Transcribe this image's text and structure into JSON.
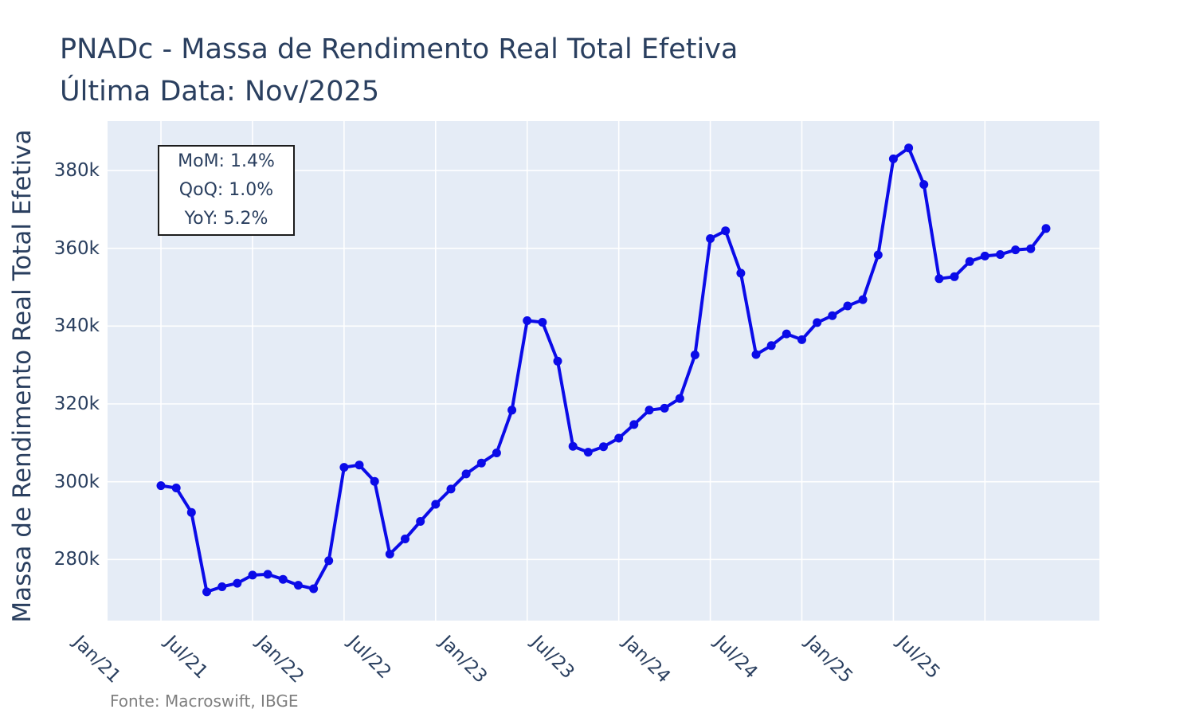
{
  "title": {
    "line1": "PNADc - Massa de Rendimento Real Total Efetiva",
    "line2": "Última Data: Nov/2025"
  },
  "annotation": {
    "lines": [
      "MoM: 1.4%",
      "QoQ: 1.0%",
      "YoY: 5.2%"
    ]
  },
  "footer": "Fonte: Macroswift, IBGE",
  "chart_data": {
    "type": "line",
    "title": "PNADc - Massa de Rendimento Real Total Efetiva",
    "subtitle": "Última Data: Nov/2025",
    "ylabel": "Massa de Rendimento Real Total Efetiva",
    "xlabel": "",
    "unit": "thousands (k)",
    "grid": true,
    "legend": "none",
    "x": [
      "Jan/21",
      "Fev/21",
      "Mar/21",
      "Abr/21",
      "Mai/21",
      "Jun/21",
      "Jul/21",
      "Ago/21",
      "Set/21",
      "Out/21",
      "Nov/21",
      "Dez/21",
      "Jan/22",
      "Fev/22",
      "Mar/22",
      "Abr/22",
      "Mai/22",
      "Jun/22",
      "Jul/22",
      "Ago/22",
      "Set/22",
      "Out/22",
      "Nov/22",
      "Dez/22",
      "Jan/23",
      "Fev/23",
      "Mar/23",
      "Abr/23",
      "Mai/23",
      "Jun/23",
      "Jul/23",
      "Ago/23",
      "Set/23",
      "Out/23",
      "Nov/23",
      "Dez/23",
      "Jan/24",
      "Fev/24",
      "Mar/24",
      "Abr/24",
      "Mai/24",
      "Jun/24",
      "Jul/24",
      "Ago/24",
      "Set/24",
      "Out/24",
      "Nov/24",
      "Dez/24",
      "Jan/25",
      "Fev/25",
      "Mar/25",
      "Abr/25",
      "Mai/25",
      "Jun/25",
      "Jul/25",
      "Ago/25",
      "Set/25",
      "Out/25",
      "Nov/25"
    ],
    "values": [
      299.0,
      298.4,
      292.1,
      271.7,
      273.0,
      273.9,
      276.0,
      276.2,
      274.9,
      273.4,
      272.5,
      279.7,
      303.7,
      304.3,
      300.1,
      281.4,
      285.3,
      289.8,
      294.2,
      298.1,
      302.0,
      304.8,
      307.4,
      318.4,
      341.4,
      341.0,
      331.0,
      309.1,
      307.6,
      309.0,
      311.2,
      314.7,
      318.4,
      318.9,
      321.4,
      332.6,
      362.5,
      364.5,
      353.6,
      332.7,
      335.0,
      338.0,
      336.5,
      340.9,
      342.7,
      345.2,
      346.8,
      358.3,
      383.0,
      385.8,
      376.4,
      352.2,
      352.7,
      356.6,
      358.0,
      358.4,
      359.6,
      359.9,
      365.1
    ],
    "yticks": [
      {
        "label": "280k",
        "v": 280
      },
      {
        "label": "300k",
        "v": 300
      },
      {
        "label": "320k",
        "v": 320
      },
      {
        "label": "340k",
        "v": 340
      },
      {
        "label": "360k",
        "v": 360
      },
      {
        "label": "380k",
        "v": 380
      }
    ],
    "xticks": [
      {
        "label": "Jan/21",
        "i": 0
      },
      {
        "label": "Jul/21",
        "i": 6
      },
      {
        "label": "Jan/22",
        "i": 12
      },
      {
        "label": "Jul/22",
        "i": 18
      },
      {
        "label": "Jan/23",
        "i": 24
      },
      {
        "label": "Jul/23",
        "i": 30
      },
      {
        "label": "Jan/24",
        "i": 36
      },
      {
        "label": "Jul/24",
        "i": 42
      },
      {
        "label": "Jan/25",
        "i": 48
      },
      {
        "label": "Jul/25",
        "i": 54
      }
    ],
    "x_range_month_index": [
      -3.5,
      61.5
    ],
    "ylim": [
      264.3,
      392.7
    ],
    "colors": {
      "line": "#0b0be8",
      "plot_bg": "#e5ecf6",
      "grid": "#ffffff",
      "text": "#2a3f5f",
      "footer_text": "#7f7f7f",
      "annotation_border": "#1c1c1c",
      "annotation_bg": "#ffffff"
    }
  }
}
